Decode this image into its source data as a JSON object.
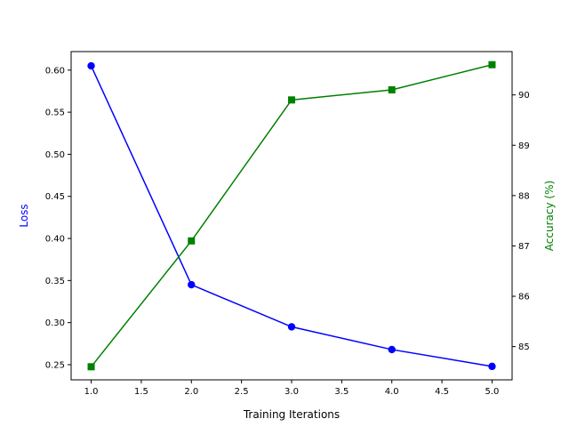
{
  "chart_data": {
    "type": "line",
    "xlabel": "Training Iterations",
    "ylabel_left": "Loss",
    "ylabel_right": "Accuracy (%)",
    "x": [
      1,
      2,
      3,
      4,
      5
    ],
    "xlim": [
      0.8,
      5.2
    ],
    "x_ticks": [
      "1.0",
      "1.5",
      "2.0",
      "2.5",
      "3.0",
      "3.5",
      "4.0",
      "4.5",
      "5.0"
    ],
    "y_left_lim": [
      0.232,
      0.622
    ],
    "y_left_ticks": [
      "0.25",
      "0.30",
      "0.35",
      "0.40",
      "0.45",
      "0.50",
      "0.55",
      "0.60"
    ],
    "y_right_lim": [
      84.34,
      90.86
    ],
    "y_right_ticks": [
      "85",
      "86",
      "87",
      "88",
      "89",
      "90"
    ],
    "grid": false,
    "series": [
      {
        "axis": "left",
        "values": [
          0.605,
          0.345,
          0.295,
          0.268,
          0.248
        ],
        "color": "#0000ff",
        "marker": "circle"
      },
      {
        "axis": "right",
        "values": [
          84.6,
          87.1,
          89.9,
          90.1,
          90.6
        ],
        "color": "#008000",
        "marker": "square"
      }
    ]
  }
}
